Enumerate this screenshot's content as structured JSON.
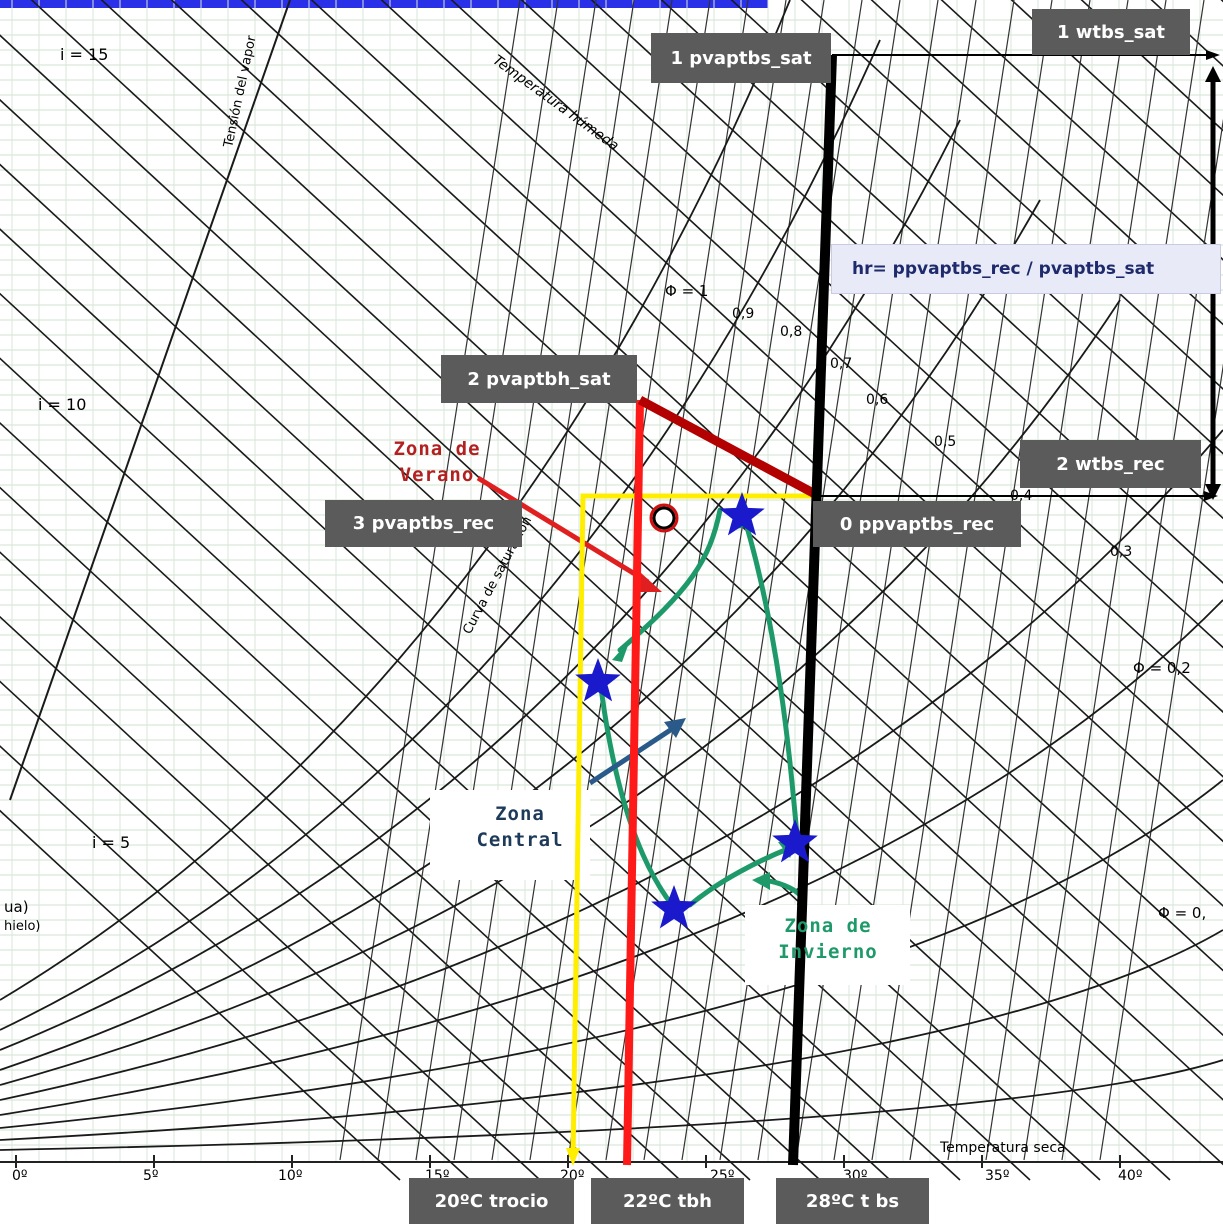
{
  "header_bar_color": "#2a2fe8",
  "boxes": {
    "wtbs_sat": "1 wtbs_sat",
    "pvaptbs_sat": "1 pvaptbs_sat",
    "hr_eq": "hr=  ppvaptbs_rec / pvaptbs_sat",
    "pvaptbh_sat": "2 pvaptbh_sat",
    "wtbs_rec": "2  wtbs_rec",
    "pvaptbs_rec": "3 pvaptbs_rec",
    "ppvaptbs_rec": "0  ppvaptbs_rec",
    "trocio": "20ºC trocio",
    "tbh": "22ºC tbh",
    "tbs": "28ºC t bs"
  },
  "zones": {
    "verano": [
      "Zona de",
      "Verano"
    ],
    "central": [
      "Zona",
      "Central"
    ],
    "invierno": [
      "Zona de",
      "Invierno"
    ]
  },
  "chart_labels": {
    "i15": "i = 15",
    "i10": "i = 10",
    "i5": "i = 5",
    "tension": "Tensión del vapor",
    "temp_humeda": "Temperatura húmeda",
    "curva_sat": "Curva de saturación",
    "temp_seca": "Temperatura seca",
    "phi1": "Φ = 1",
    "phi02": "Φ = 0,2",
    "phi0": "Φ = 0,",
    "ua": "ua)",
    "hielo": "hielo)",
    "rh_values": [
      "0,9",
      "0,8",
      "0,7",
      "0,6",
      "0,5",
      "0,4",
      "0,3"
    ],
    "x_ticks": [
      "0º",
      "5º",
      "10º",
      "15º",
      "20º",
      "25º",
      "30º",
      "35º",
      "40º"
    ]
  },
  "colors": {
    "yellow_line": "#ffee00",
    "red_line": "#ff1a1a",
    "darkred_line": "#b30000",
    "black_line": "#000000",
    "green_path": "#1e9a6a",
    "star": "#1a1acc",
    "blue_arrow": "#2a5a8a",
    "label_box": "#5b5b5b"
  }
}
